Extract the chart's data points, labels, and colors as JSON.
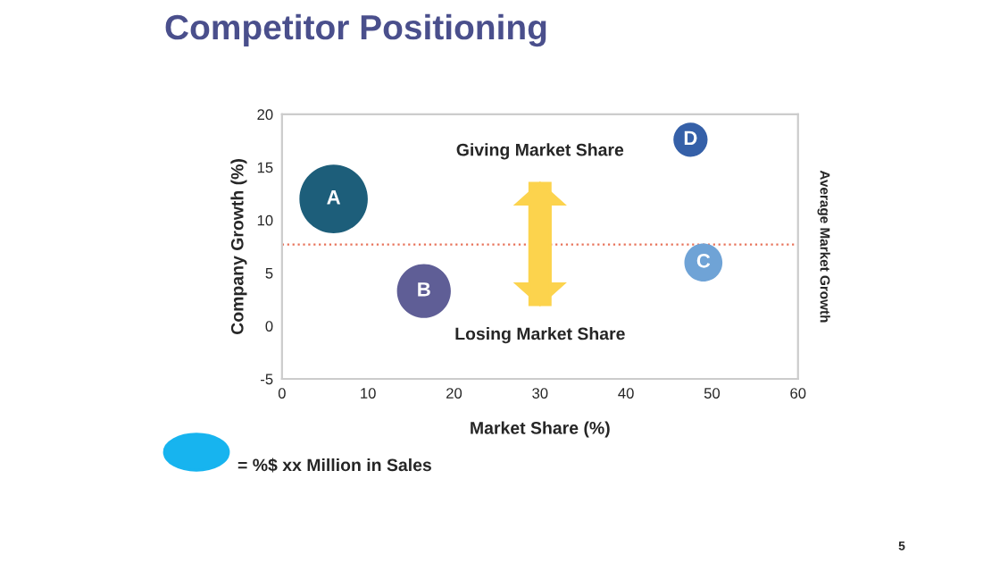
{
  "chart_data": {
    "type": "bubble",
    "title": "Competitor Positioning",
    "xlabel": "Market Share (%)",
    "ylabel": "Company Growth (%)",
    "series": [
      {
        "color": "#1d5e7a",
        "x": [
          6
        ],
        "values": [
          12
        ],
        "sizes": [
          1
        ]
      },
      {
        "color": "#5f5e96",
        "x": [
          16.5
        ],
        "values": [
          3.3
        ],
        "sizes": [
          0.62
        ]
      },
      {
        "color": "#6fa3d6",
        "x": [
          49
        ],
        "values": [
          6
        ],
        "sizes": [
          0.31
        ]
      },
      {
        "color": "#3560a8",
        "x": [
          47.5
        ],
        "values": [
          17.6
        ],
        "sizes": [
          0.25
        ]
      }
    ],
    "annotations": [
      "Giving Market Share",
      "Losing Market Share",
      "= %$ xx Million in Sales",
      "5",
      {
        "text": "A",
        "x": 6,
        "y": 12
      },
      {
        "text": "B",
        "x": 16.5,
        "y": 3.3
      },
      {
        "text": "C",
        "x": 49,
        "y": 6
      },
      {
        "text": "D",
        "x": 47.5,
        "y": 17.6
      }
    ],
    "ref_lines": [
      {
        "axis": "y",
        "value": 7.7,
        "label": "Average Market Growth",
        "color": "#e8735a",
        "line_style": "dotted"
      }
    ],
    "xlim": [
      0,
      60
    ],
    "xticks": [
      0,
      10,
      20,
      30,
      40,
      50,
      60
    ],
    "ylim": [
      -5,
      20
    ],
    "yticks": [
      -5,
      0,
      5,
      10,
      15,
      20
    ],
    "grid": false
  }
}
